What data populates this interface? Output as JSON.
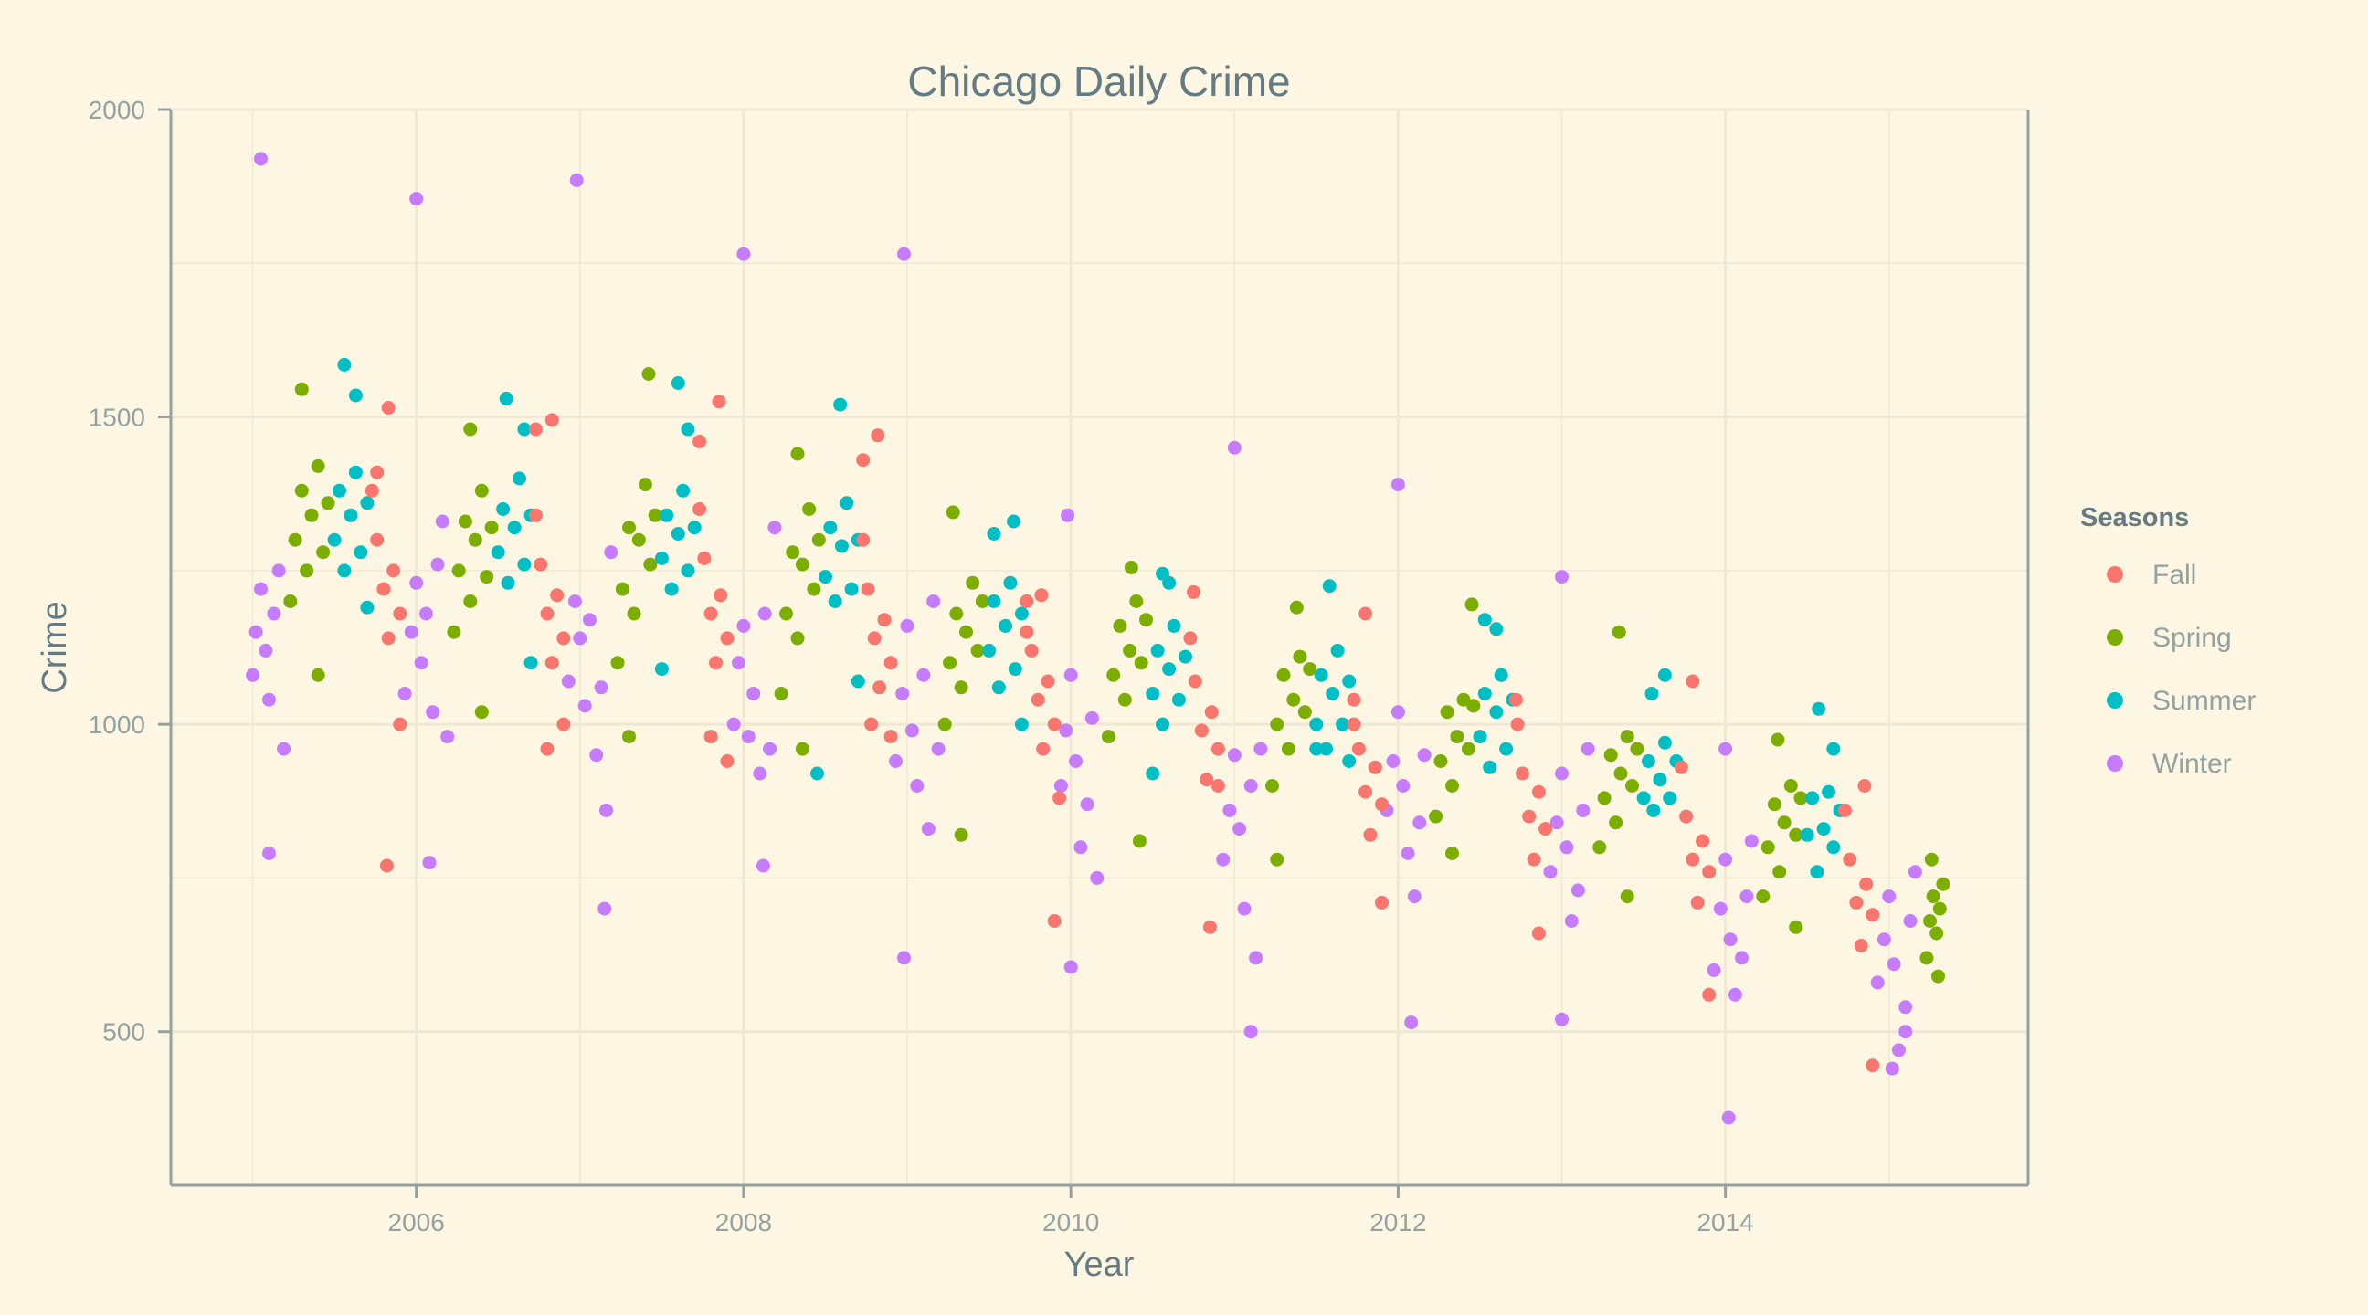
{
  "chart_data": {
    "type": "scatter",
    "title": "Chicago Daily Crime",
    "xlabel": "Year",
    "ylabel": "Crime",
    "x_range": [
      2004.5,
      2015.85
    ],
    "x_ticks": [
      2006,
      2008,
      2010,
      2012,
      2014
    ],
    "x_tick_labels": [
      "2006",
      "2008",
      "2010",
      "2012",
      "2014"
    ],
    "ylim": [
      250,
      2000
    ],
    "y_ticks": [
      500,
      1000,
      1500,
      2000
    ],
    "y_tick_labels": [
      "500",
      "1000",
      "1500",
      "2000"
    ],
    "grid": true,
    "legend": {
      "title": "Seasons",
      "position": "right",
      "entries": [
        "Fall",
        "Spring",
        "Summer",
        "Winter"
      ]
    },
    "colors": {
      "Fall": "#f8766d",
      "Spring": "#7cae00",
      "Summer": "#00bfc4",
      "Winter": "#c77cff",
      "background": "#fdf6e3",
      "grid": "#eee8d5",
      "axis": "#93a1a1",
      "text": "#657b83"
    },
    "series": [
      {
        "name": "Winter",
        "x": [
          2005.0,
          2005.02,
          2005.05,
          2005.08,
          2005.1,
          2005.13,
          2005.16,
          2005.19,
          2005.05,
          2005.1,
          2005.93,
          2005.97,
          2006.0,
          2006.03,
          2006.06,
          2006.1,
          2006.13,
          2006.16,
          2006.19,
          2006.0,
          2006.08,
          2006.93,
          2006.97,
          2007.0,
          2007.03,
          2007.06,
          2007.1,
          2007.13,
          2007.16,
          2007.19,
          2006.98,
          2007.15,
          2007.94,
          2007.97,
          2008.0,
          2008.03,
          2008.06,
          2008.1,
          2008.13,
          2008.16,
          2008.19,
          2008.0,
          2008.12,
          2008.93,
          2008.97,
          2009.0,
          2009.03,
          2009.06,
          2009.1,
          2009.13,
          2009.16,
          2009.19,
          2008.98,
          2008.98,
          2009.94,
          2009.97,
          2010.0,
          2010.03,
          2010.06,
          2010.1,
          2010.13,
          2010.16,
          2009.98,
          2010.0,
          2010.93,
          2010.97,
          2011.0,
          2011.03,
          2011.06,
          2011.1,
          2011.13,
          2011.16,
          2011.0,
          2011.1,
          2011.93,
          2011.97,
          2012.0,
          2012.03,
          2012.06,
          2012.1,
          2012.13,
          2012.16,
          2012.0,
          2012.08,
          2012.93,
          2012.97,
          2013.0,
          2013.03,
          2013.06,
          2013.1,
          2013.13,
          2013.16,
          2013.0,
          2013.0,
          2013.93,
          2013.97,
          2014.0,
          2014.03,
          2014.06,
          2014.1,
          2014.13,
          2014.16,
          2014.0,
          2014.02,
          2014.93,
          2014.97,
          2015.0,
          2015.03,
          2015.06,
          2015.1,
          2015.13,
          2015.16,
          2015.02,
          2015.1
        ],
        "y": [
          1080,
          1150,
          1220,
          1120,
          1040,
          1180,
          1250,
          960,
          1920,
          790,
          1050,
          1150,
          1230,
          1100,
          1180,
          1020,
          1260,
          1330,
          980,
          1855,
          775,
          1070,
          1200,
          1140,
          1030,
          1170,
          950,
          1060,
          860,
          1280,
          1885,
          700,
          1000,
          1100,
          1160,
          980,
          1050,
          920,
          1180,
          960,
          1320,
          1765,
          770,
          940,
          1050,
          1160,
          990,
          900,
          1080,
          830,
          1200,
          960,
          1765,
          620,
          900,
          990,
          1080,
          940,
          800,
          870,
          1010,
          750,
          1340,
          605,
          780,
          860,
          950,
          830,
          700,
          900,
          620,
          960,
          1450,
          500,
          860,
          940,
          1020,
          900,
          790,
          720,
          840,
          950,
          1390,
          515,
          760,
          840,
          920,
          800,
          680,
          730,
          860,
          960,
          1240,
          520,
          600,
          700,
          780,
          650,
          560,
          620,
          720,
          810,
          960,
          360,
          580,
          650,
          720,
          610,
          470,
          540,
          680,
          760,
          440,
          500
        ]
      },
      {
        "name": "Spring",
        "x": [
          2005.23,
          2005.26,
          2005.3,
          2005.33,
          2005.36,
          2005.4,
          2005.43,
          2005.46,
          2005.3,
          2005.4,
          2006.23,
          2006.26,
          2006.3,
          2006.33,
          2006.36,
          2006.4,
          2006.43,
          2006.46,
          2006.33,
          2006.4,
          2007.23,
          2007.26,
          2007.3,
          2007.33,
          2007.36,
          2007.4,
          2007.43,
          2007.46,
          2007.42,
          2007.3,
          2008.23,
          2008.26,
          2008.3,
          2008.33,
          2008.36,
          2008.4,
          2008.43,
          2008.46,
          2008.33,
          2008.36,
          2009.23,
          2009.26,
          2009.3,
          2009.33,
          2009.36,
          2009.4,
          2009.43,
          2009.46,
          2009.28,
          2009.33,
          2010.23,
          2010.26,
          2010.3,
          2010.33,
          2010.36,
          2010.4,
          2010.43,
          2010.46,
          2010.37,
          2010.42,
          2011.23,
          2011.26,
          2011.3,
          2011.33,
          2011.36,
          2011.4,
          2011.43,
          2011.46,
          2011.38,
          2011.26,
          2012.23,
          2012.26,
          2012.3,
          2012.33,
          2012.36,
          2012.4,
          2012.43,
          2012.46,
          2012.45,
          2012.33,
          2013.23,
          2013.26,
          2013.3,
          2013.33,
          2013.36,
          2013.4,
          2013.43,
          2013.46,
          2013.35,
          2013.4,
          2014.23,
          2014.26,
          2014.3,
          2014.33,
          2014.36,
          2014.4,
          2014.43,
          2014.46,
          2014.32,
          2014.43,
          2015.23,
          2015.25,
          2015.27,
          2015.29,
          2015.31,
          2015.33,
          2015.26,
          2015.3
        ],
        "y": [
          1200,
          1300,
          1380,
          1250,
          1340,
          1420,
          1280,
          1360,
          1545,
          1080,
          1150,
          1250,
          1330,
          1200,
          1300,
          1380,
          1240,
          1320,
          1480,
          1020,
          1100,
          1220,
          1320,
          1180,
          1300,
          1390,
          1260,
          1340,
          1570,
          980,
          1050,
          1180,
          1280,
          1140,
          1260,
          1350,
          1220,
          1300,
          1440,
          960,
          1000,
          1100,
          1180,
          1060,
          1150,
          1230,
          1120,
          1200,
          1345,
          820,
          980,
          1080,
          1160,
          1040,
          1120,
          1200,
          1100,
          1170,
          1255,
          810,
          900,
          1000,
          1080,
          960,
          1040,
          1110,
          1020,
          1090,
          1190,
          780,
          850,
          940,
          1020,
          900,
          980,
          1040,
          960,
          1030,
          1195,
          790,
          800,
          880,
          950,
          840,
          920,
          980,
          900,
          960,
          1150,
          720,
          720,
          800,
          870,
          760,
          840,
          900,
          820,
          880,
          975,
          670,
          620,
          680,
          720,
          660,
          700,
          740,
          780,
          590
        ]
      },
      {
        "name": "Summer",
        "x": [
          2005.5,
          2005.53,
          2005.56,
          2005.6,
          2005.63,
          2005.66,
          2005.7,
          2005.56,
          2005.63,
          2005.7,
          2006.5,
          2006.53,
          2006.56,
          2006.6,
          2006.63,
          2006.66,
          2006.7,
          2006.55,
          2006.66,
          2006.7,
          2007.5,
          2007.53,
          2007.56,
          2007.6,
          2007.63,
          2007.66,
          2007.7,
          2007.6,
          2007.66,
          2007.5,
          2008.5,
          2008.53,
          2008.56,
          2008.6,
          2008.63,
          2008.66,
          2008.7,
          2008.59,
          2008.45,
          2008.7,
          2009.5,
          2009.53,
          2009.56,
          2009.6,
          2009.63,
          2009.66,
          2009.7,
          2009.53,
          2009.65,
          2009.7,
          2010.5,
          2010.53,
          2010.56,
          2010.6,
          2010.63,
          2010.66,
          2010.7,
          2010.56,
          2010.6,
          2010.5,
          2011.5,
          2011.53,
          2011.56,
          2011.6,
          2011.63,
          2011.66,
          2011.7,
          2011.58,
          2011.7,
          2011.5,
          2012.5,
          2012.53,
          2012.56,
          2012.6,
          2012.63,
          2012.66,
          2012.7,
          2012.6,
          2012.53,
          2013.5,
          2013.53,
          2013.56,
          2013.6,
          2013.63,
          2013.66,
          2013.7,
          2013.63,
          2013.55,
          2014.5,
          2014.53,
          2014.56,
          2014.6,
          2014.63,
          2014.66,
          2014.7,
          2014.57,
          2014.66
        ],
        "y": [
          1300,
          1380,
          1250,
          1340,
          1410,
          1280,
          1360,
          1585,
          1535,
          1190,
          1280,
          1350,
          1230,
          1320,
          1400,
          1260,
          1340,
          1530,
          1480,
          1100,
          1270,
          1340,
          1220,
          1310,
          1380,
          1250,
          1320,
          1555,
          1480,
          1090,
          1240,
          1320,
          1200,
          1290,
          1360,
          1220,
          1300,
          1520,
          920,
          1070,
          1120,
          1200,
          1060,
          1160,
          1230,
          1090,
          1180,
          1310,
          1330,
          1000,
          1050,
          1120,
          1000,
          1090,
          1160,
          1040,
          1110,
          1245,
          1230,
          920,
          1000,
          1080,
          960,
          1050,
          1120,
          1000,
          1070,
          1225,
          940,
          960,
          980,
          1050,
          930,
          1020,
          1080,
          960,
          1040,
          1155,
          1170,
          880,
          940,
          860,
          910,
          970,
          880,
          940,
          1080,
          1050,
          820,
          880,
          760,
          830,
          890,
          800,
          860,
          1025,
          960
        ]
      },
      {
        "name": "Fall",
        "x": [
          2005.73,
          2005.76,
          2005.8,
          2005.83,
          2005.86,
          2005.9,
          2005.76,
          2005.83,
          2005.9,
          2005.82,
          2006.73,
          2006.76,
          2006.8,
          2006.83,
          2006.86,
          2006.9,
          2006.73,
          2006.83,
          2006.8,
          2006.9,
          2007.73,
          2007.76,
          2007.8,
          2007.83,
          2007.86,
          2007.9,
          2007.73,
          2007.85,
          2007.8,
          2007.9,
          2008.73,
          2008.76,
          2008.8,
          2008.83,
          2008.86,
          2008.9,
          2008.73,
          2008.82,
          2008.9,
          2008.78,
          2009.73,
          2009.76,
          2009.8,
          2009.83,
          2009.86,
          2009.9,
          2009.93,
          2009.82,
          2009.73,
          2009.9,
          2010.73,
          2010.76,
          2010.8,
          2010.83,
          2010.86,
          2010.9,
          2010.75,
          2010.9,
          2010.85,
          2011.73,
          2011.76,
          2011.8,
          2011.83,
          2011.86,
          2011.9,
          2011.73,
          2011.8,
          2011.9,
          2012.73,
          2012.76,
          2012.8,
          2012.83,
          2012.86,
          2012.9,
          2012.72,
          2012.86,
          2013.73,
          2013.76,
          2013.8,
          2013.83,
          2013.86,
          2013.9,
          2013.9,
          2013.8,
          2014.73,
          2014.76,
          2014.8,
          2014.83,
          2014.86,
          2014.9,
          2014.85,
          2014.9
        ],
        "y": [
          1380,
          1300,
          1220,
          1140,
          1250,
          1180,
          1410,
          1515,
          1000,
          770,
          1340,
          1260,
          1180,
          1100,
          1210,
          1140,
          1480,
          1495,
          960,
          1000,
          1350,
          1270,
          1180,
          1100,
          1210,
          1140,
          1460,
          1525,
          980,
          940,
          1300,
          1220,
          1140,
          1060,
          1170,
          1100,
          1430,
          1470,
          980,
          1000,
          1200,
          1120,
          1040,
          960,
          1070,
          1000,
          880,
          1210,
          1150,
          680,
          1140,
          1070,
          990,
          910,
          1020,
          960,
          1215,
          900,
          670,
          1040,
          960,
          890,
          820,
          930,
          870,
          1000,
          1180,
          710,
          1000,
          920,
          850,
          780,
          890,
          830,
          1040,
          660,
          930,
          850,
          780,
          710,
          810,
          760,
          560,
          1070,
          860,
          780,
          710,
          640,
          740,
          690,
          900,
          445
        ]
      }
    ]
  }
}
